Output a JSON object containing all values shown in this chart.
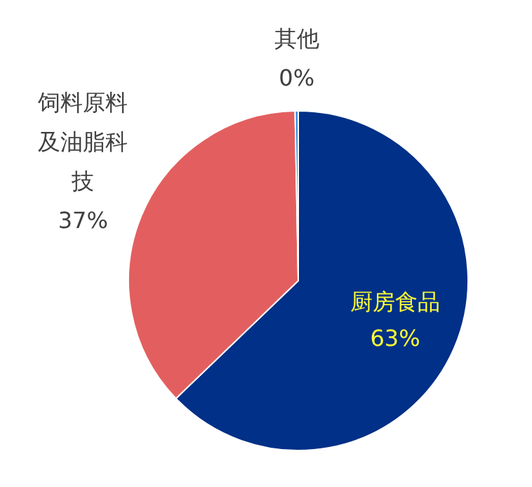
{
  "chart_data": {
    "type": "pie",
    "categories": [
      "厨房食品",
      "饲料原料及油脂科技",
      "其他"
    ],
    "values": [
      62.8,
      36.9,
      0.3
    ],
    "value_labels": [
      "63%",
      "37%",
      "0%"
    ],
    "colors": [
      "#003087",
      "#e35f5f",
      "#2f8fd8"
    ],
    "legend": false
  }
}
